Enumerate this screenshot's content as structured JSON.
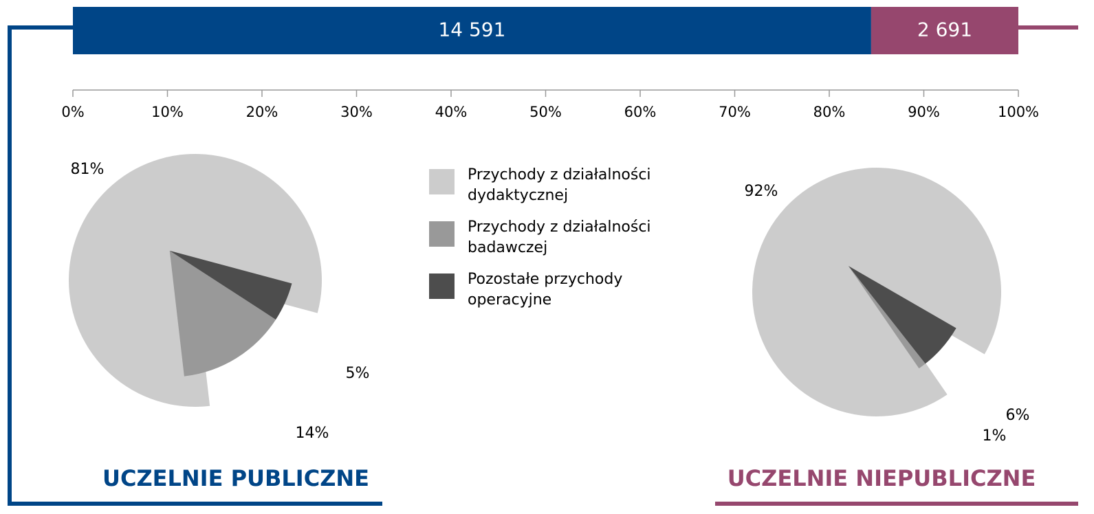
{
  "chart_data": [
    {
      "type": "bar",
      "orientation": "horizontal",
      "stacked": "percent",
      "values": [
        14591,
        2691
      ],
      "value_labels": [
        "14 591",
        "2 691"
      ],
      "colors": [
        "#004587",
        "#96476e"
      ],
      "xlim": [
        0,
        100
      ],
      "xticks": [
        {
          "value": 0,
          "label": "0%"
        },
        {
          "value": 10,
          "label": "10%"
        },
        {
          "value": 20,
          "label": "20%"
        },
        {
          "value": 30,
          "label": "30%"
        },
        {
          "value": 40,
          "label": "40%"
        },
        {
          "value": 50,
          "label": "50%"
        },
        {
          "value": 60,
          "label": "60%"
        },
        {
          "value": 70,
          "label": "70%"
        },
        {
          "value": 80,
          "label": "80%"
        },
        {
          "value": 90,
          "label": "90%"
        },
        {
          "value": 100,
          "label": "100%"
        }
      ]
    },
    {
      "type": "pie",
      "title": "UCZELNIE PUBLICZNE",
      "categories": [
        "Przychody z działalności dydaktycznej",
        "Przychody z działalności badawczej",
        "Pozostałe przychody operacyjne"
      ],
      "values": [
        81,
        14,
        5
      ],
      "value_labels": [
        "81%",
        "14%",
        "5%"
      ],
      "colors": [
        "#cccccc",
        "#999999",
        "#4d4d4d"
      ],
      "title_color": "#004587"
    },
    {
      "type": "pie",
      "title": "UCZELNIE NIEPUBLICZNE",
      "values": [
        92,
        1,
        6
      ],
      "value_labels": [
        "92%",
        "1%",
        "6%"
      ],
      "colors": [
        "#cccccc",
        "#999999",
        "#4d4d4d"
      ],
      "title_color": "#96476e"
    }
  ]
}
